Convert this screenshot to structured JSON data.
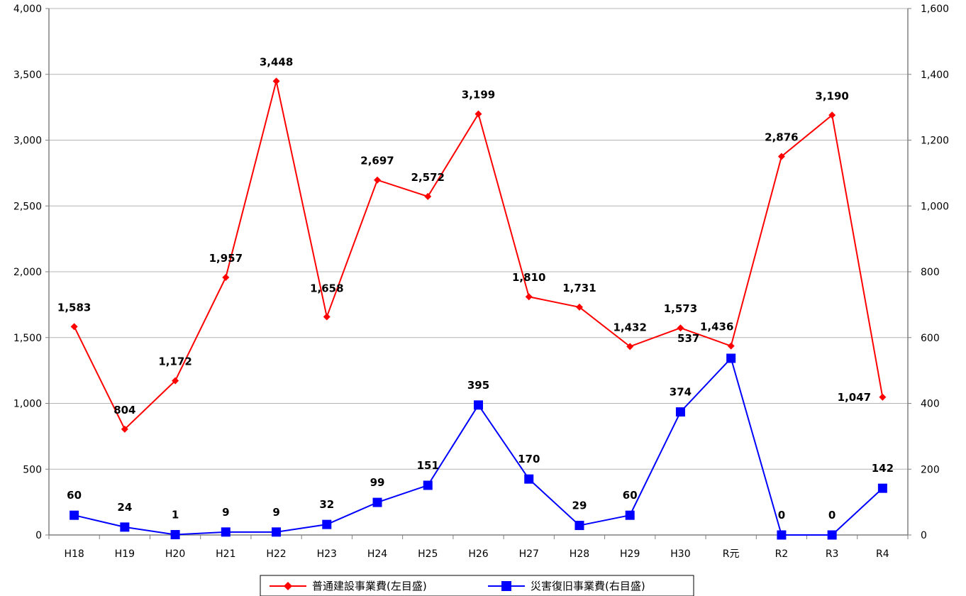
{
  "chart_data": {
    "type": "line",
    "title": "",
    "categories": [
      "H18",
      "H19",
      "H20",
      "H21",
      "H22",
      "H23",
      "H24",
      "H25",
      "H26",
      "H27",
      "H28",
      "H29",
      "H30",
      "R元",
      "R2",
      "R3",
      "R4"
    ],
    "series": [
      {
        "name": "普通建設事業費(左目盛)",
        "axis": "left",
        "color": "#ff0000",
        "marker": "diamond",
        "values": [
          1583,
          804,
          1172,
          1957,
          3448,
          1658,
          2697,
          2572,
          3199,
          1810,
          1731,
          1432,
          1573,
          1436,
          2876,
          3190,
          1047
        ],
        "labels": [
          "1,583",
          "804",
          "1,172",
          "1,957",
          "3,448",
          "1,658",
          "2,697",
          "2,572",
          "3,199",
          "1,810",
          "1,731",
          "1,432",
          "1,573",
          "1,436",
          "2,876",
          "3,190",
          "1,047"
        ]
      },
      {
        "name": "災害復旧事業費(右目盛)",
        "axis": "right",
        "color": "#0000ff",
        "marker": "square",
        "values": [
          60,
          24,
          1,
          9,
          9,
          32,
          99,
          151,
          395,
          170,
          29,
          60,
          374,
          537,
          0,
          0,
          142
        ],
        "labels": [
          "60",
          "24",
          "1",
          "9",
          "9",
          "32",
          "99",
          "151",
          "395",
          "170",
          "29",
          "60",
          "374",
          "537",
          "0",
          "0",
          "142"
        ]
      }
    ],
    "y_left": {
      "min": 0,
      "max": 4000,
      "ticks": [
        "0",
        "500",
        "1,000",
        "1,500",
        "2,000",
        "2,500",
        "3,000",
        "3,500",
        "4,000"
      ]
    },
    "y_right": {
      "min": 0,
      "max": 1600,
      "ticks": [
        "0",
        "200",
        "400",
        "600",
        "800",
        "1,000",
        "1,200",
        "1,400",
        "1,600"
      ]
    },
    "grid": true,
    "legend_position": "bottom"
  }
}
